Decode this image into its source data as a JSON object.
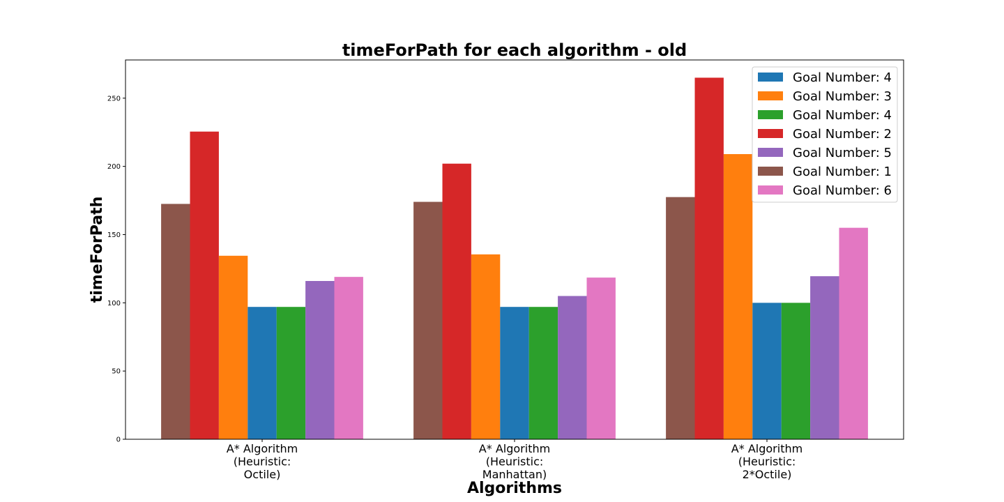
{
  "chart_data": {
    "type": "bar",
    "title": "timeForPath for each algorithm - old",
    "xlabel": "Algorithms",
    "ylabel": "timeForPath",
    "ylim": [
      0,
      278
    ],
    "yticks": [
      0,
      50,
      100,
      150,
      200,
      250
    ],
    "grid": false,
    "legend_position": "top-right",
    "categories": [
      [
        "A* Algorithm",
        "(Heuristic:",
        "Octile)"
      ],
      [
        "A* Algorithm",
        "(Heuristic:",
        "Manhattan)"
      ],
      [
        "A* Algorithm",
        "(Heuristic:",
        "2*Octile)"
      ]
    ],
    "series": [
      {
        "name": "Goal Number: 4",
        "color": "#1f77b4",
        "values": [
          97,
          97,
          100
        ]
      },
      {
        "name": "Goal Number: 3",
        "color": "#ff7f0e",
        "values": [
          134.5,
          135.5,
          209
        ]
      },
      {
        "name": "Goal Number: 4",
        "color": "#2ca02c",
        "values": [
          97,
          97,
          100
        ]
      },
      {
        "name": "Goal Number: 2",
        "color": "#d62728",
        "values": [
          225.5,
          202,
          265
        ]
      },
      {
        "name": "Goal Number: 5",
        "color": "#9467bd",
        "values": [
          116,
          105,
          119.5
        ]
      },
      {
        "name": "Goal Number: 1",
        "color": "#8c564b",
        "values": [
          172.5,
          174,
          177.5
        ]
      },
      {
        "name": "Goal Number: 6",
        "color": "#e377c2",
        "values": [
          119,
          118.5,
          155
        ]
      }
    ],
    "bar_order": [
      5,
      3,
      1,
      0,
      2,
      4,
      6
    ]
  }
}
